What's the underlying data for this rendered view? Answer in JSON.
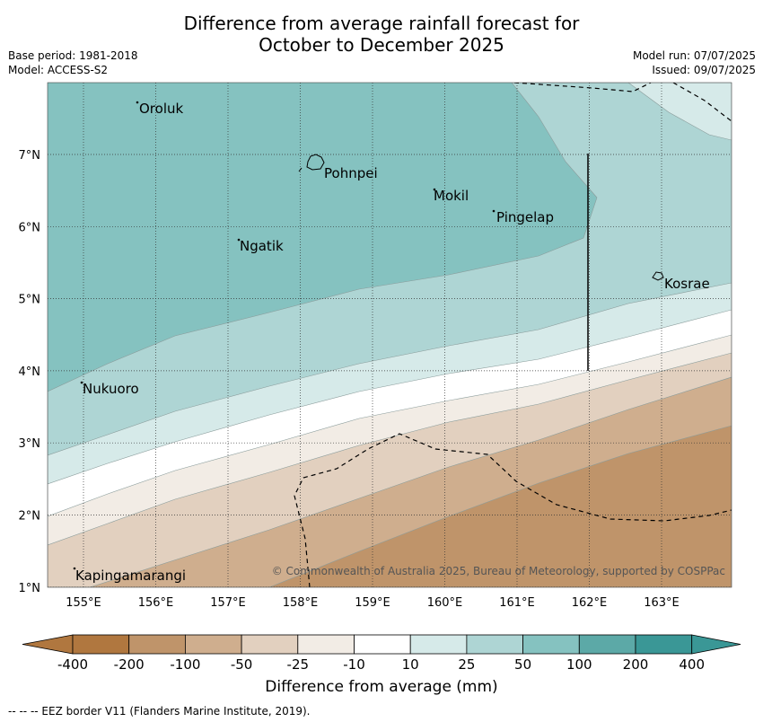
{
  "header": {
    "title_line1": "Difference from average rainfall forecast for",
    "title_line2": "October to December 2025",
    "base_period": "Base period: 1981-2018",
    "model": "Model: ACCESS-S2",
    "model_run": "Model run: 07/07/2025",
    "issued": "Issued: 09/07/2025"
  },
  "map": {
    "lon_ticks": [
      "155°E",
      "156°E",
      "157°E",
      "158°E",
      "159°E",
      "160°E",
      "161°E",
      "162°E",
      "163°E"
    ],
    "lat_ticks": [
      "7°N",
      "6°N",
      "5°N",
      "4°N",
      "3°N",
      "2°N",
      "1°N"
    ],
    "places": [
      {
        "name": "Oroluk"
      },
      {
        "name": "Pohnpei"
      },
      {
        "name": "Mokil"
      },
      {
        "name": "Pingelap"
      },
      {
        "name": "Ngatik"
      },
      {
        "name": "Kosrae"
      },
      {
        "name": "Nukuoro"
      },
      {
        "name": "Kapingamarangi"
      }
    ],
    "copyright": "© Commonwealth of Australia 2025, Bureau of Meteorology, supported by COSPPac"
  },
  "colorbar": {
    "ticks": [
      "-400",
      "-200",
      "-100",
      "-50",
      "-25",
      "-10",
      "10",
      "25",
      "50",
      "100",
      "200",
      "400"
    ],
    "colors": [
      "#b0773f",
      "#bf946a",
      "#cfae8e",
      "#e2d0bf",
      "#f2ece5",
      "#ffffff",
      "#d6eae9",
      "#aed5d4",
      "#85c2c0",
      "#5ca9a7",
      "#3a9796"
    ],
    "label": "Difference from average (mm)"
  },
  "footer": {
    "eez_note": "--  --  -- EEZ border V11 (Flanders Marine Institute, 2019)."
  }
}
